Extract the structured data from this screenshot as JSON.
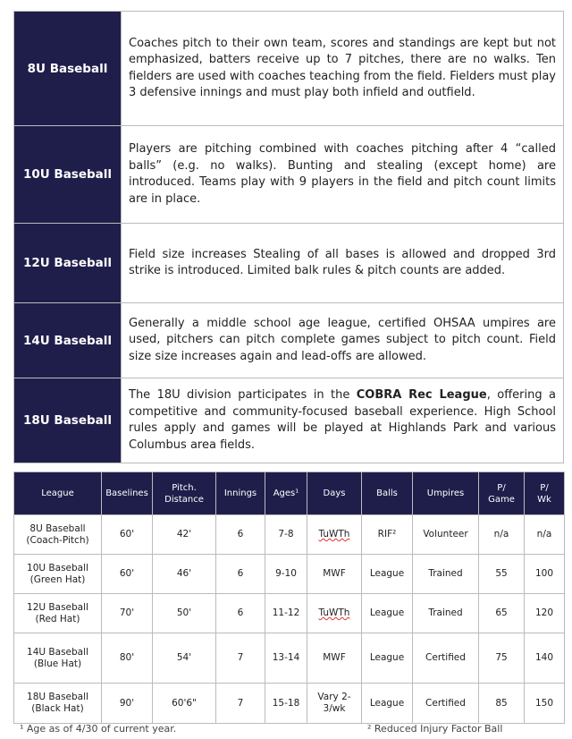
{
  "divisions": [
    {
      "name": "8U Baseball",
      "description": "Coaches pitch to their own team, scores and standings are kept but not emphasized, batters receive up to 7 pitches, there are no walks. Ten fielders are used with coaches teaching from the field. Fielders must play 3 defensive innings and must play both infield and outfield."
    },
    {
      "name": "10U Baseball",
      "description": "Players are pitching combined with coaches pitching after 4 “called balls” (e.g. no walks). Bunting and stealing (except home) are introduced. Teams play with 9 players in the field and pitch count limits are in place."
    },
    {
      "name": "12U Baseball",
      "description": "Field size increases Stealing of all bases is allowed and dropped 3rd strike is introduced. Limited balk rules & pitch counts are added."
    },
    {
      "name": "14U Baseball",
      "description": "Generally a middle school age league, certified OHSAA umpires are used, pitchers can pitch complete games subject to pitch count. Field size  size increases again and lead-offs are allowed."
    },
    {
      "name": "18U Baseball",
      "description_pre": "The 18U division participates in the ",
      "description_bold": "COBRA Rec League",
      "description_post": ", offering a competitive and community-focused baseball experience. High School rules apply and games will be played at Highlands Park and various Columbus area fields."
    }
  ],
  "table": {
    "headers": [
      "League",
      "Baselines",
      "Pitch. Distance",
      "Innings",
      "Ages¹",
      "Days",
      "Balls",
      "Umpires",
      "P/ Game",
      "P/ Wk"
    ],
    "rows": [
      {
        "league": "8U Baseball",
        "sub": "(Coach-Pitch)",
        "cells": [
          "60'",
          "42'",
          "6",
          "7-8",
          "TuWTh",
          "RIF²",
          "Volunteer",
          "n/a",
          "n/a"
        ]
      },
      {
        "league": "10U Baseball",
        "sub": "(Green Hat)",
        "cells": [
          "60'",
          "46'",
          "6",
          "9-10",
          "MWF",
          "League",
          "Trained",
          "55",
          "100"
        ]
      },
      {
        "league": "12U Baseball",
        "sub": "(Red Hat)",
        "cells": [
          "70'",
          "50'",
          "6",
          "11-12",
          "TuWTh",
          "League",
          "Trained",
          "65",
          "120"
        ]
      },
      {
        "league": "14U Baseball",
        "sub": "(Blue Hat)",
        "cells": [
          "80'",
          "54'",
          "7",
          "13-14",
          "MWF",
          "League",
          "Certified",
          "75",
          "140"
        ]
      },
      {
        "league": "18U Baseball",
        "sub": "(Black Hat)",
        "cells": [
          "90'",
          "60'6\"",
          "7",
          "15-18",
          "Vary 2-3/wk",
          "League",
          "Certified",
          "85",
          "150"
        ]
      }
    ]
  },
  "footnotes": [
    "¹ Age as of 4/30 of current year.",
    "² Reduced Injury Factor Ball"
  ]
}
